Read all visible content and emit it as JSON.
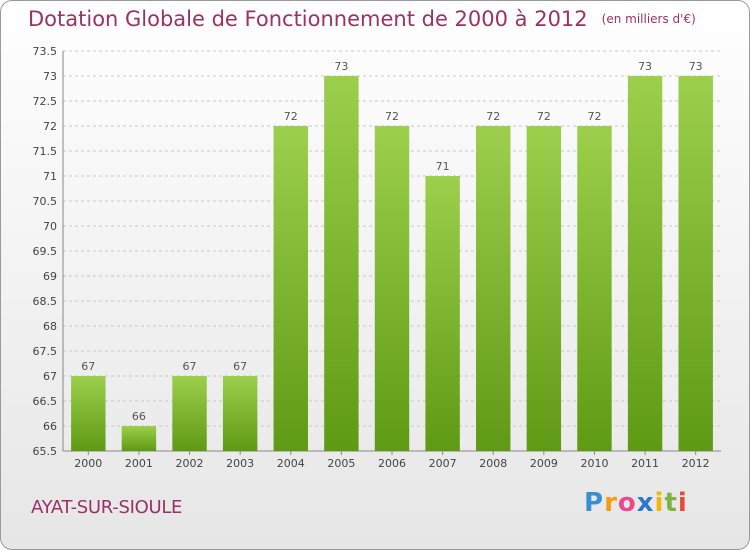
{
  "header": {
    "title": "Dotation Globale de Fonctionnement de 2000 à 2012",
    "unit": "(en milliers d'€)"
  },
  "footer": {
    "city": "AYAT-SUR-SIOULE",
    "logo": "Proxiti"
  },
  "colors": {
    "title": "#993366",
    "bar_top": "#9ccf4c",
    "bar_bottom": "#5f9a14",
    "grid": "#c8c8c8"
  },
  "chart_data": {
    "type": "bar",
    "title": "Dotation Globale de Fonctionnement de 2000 à 2012",
    "xlabel": "",
    "ylabel": "",
    "categories": [
      "2000",
      "2001",
      "2002",
      "2003",
      "2004",
      "2005",
      "2006",
      "2007",
      "2008",
      "2009",
      "2010",
      "2011",
      "2012"
    ],
    "values": [
      67,
      66,
      67,
      67,
      72,
      73,
      72,
      71,
      72,
      72,
      72,
      73,
      73
    ],
    "ylim": [
      65.5,
      73.5
    ],
    "yticks": [
      65.5,
      66,
      66.5,
      67,
      67.5,
      68,
      68.5,
      69,
      69.5,
      70,
      70.5,
      71,
      71.5,
      72,
      72.5,
      73,
      73.5
    ],
    "grid": true,
    "data_labels": true
  }
}
